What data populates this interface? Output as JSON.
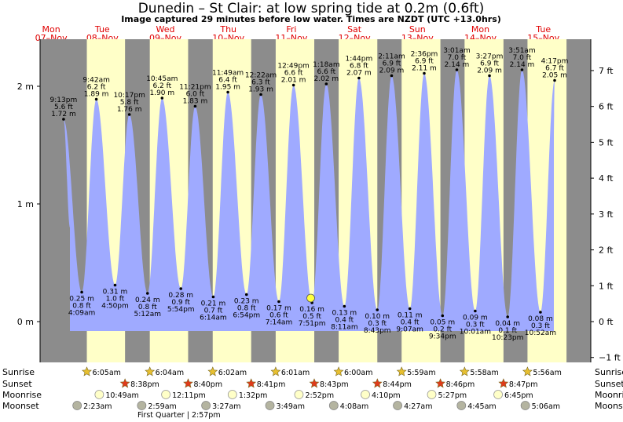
{
  "title": "Dunedin – St Clair: at low  spring tide at 0.2m (0.6ft)",
  "subtitle": "Image captured 29 minutes before low water. Times are NZDT (UTC +13.0hrs)",
  "colors": {
    "night": "#8c8c8c",
    "day": "#ffffc8",
    "water": "#9faaff",
    "day_label": "#e00000",
    "sun_marker": "#e8c030",
    "sunset_marker": "#e03a1a",
    "moonrise_marker": "#ffffc8",
    "moonset_marker": "#b4b4a0",
    "current_marker": "#ffff40"
  },
  "days": [
    {
      "dow": "Mon",
      "date": "07–Nov"
    },
    {
      "dow": "Tue",
      "date": "08–Nov"
    },
    {
      "dow": "Wed",
      "date": "09–Nov"
    },
    {
      "dow": "Thu",
      "date": "10–Nov"
    },
    {
      "dow": "Fri",
      "date": "11–Nov"
    },
    {
      "dow": "Sat",
      "date": "12–Nov"
    },
    {
      "dow": "Sun",
      "date": "13–Nov"
    },
    {
      "dow": "Mon",
      "date": "14–Nov"
    },
    {
      "dow": "Tue",
      "date": "15–Nov"
    }
  ],
  "chart_data": {
    "type": "area",
    "x_start": "Mon 07-Nov 12:00",
    "x_end": "Tue 15-Nov 24:00",
    "y_left_unit": "m",
    "y_left_ticks": [
      {
        "v": 0,
        "label": "0 m"
      },
      {
        "v": 1,
        "label": "1 m"
      },
      {
        "v": 2,
        "label": "2 m"
      }
    ],
    "y_right_ticks": [
      {
        "v": -1,
        "label": "−1 ft"
      },
      {
        "v": 0,
        "label": "0 ft"
      },
      {
        "v": 1,
        "label": "1 ft"
      },
      {
        "v": 2,
        "label": "2 ft"
      },
      {
        "v": 3,
        "label": "3 ft"
      },
      {
        "v": 4,
        "label": "4 ft"
      },
      {
        "v": 5,
        "label": "5 ft"
      },
      {
        "v": 6,
        "label": "6 ft"
      },
      {
        "v": 7,
        "label": "7 ft"
      }
    ],
    "ylim_m": [
      -0.35,
      2.35
    ],
    "tides": [
      {
        "type": "high",
        "day": 0,
        "time": "9:13 pm",
        "ft": "5.6 ft",
        "m": 1.72,
        "m_label": "1.72 m"
      },
      {
        "type": "low",
        "day": 1,
        "time": "4:09 am",
        "ft": "0.8 ft",
        "m": 0.25,
        "m_label": "0.25 m"
      },
      {
        "type": "high",
        "day": 1,
        "time": "9:42 am",
        "ft": "6.2 ft",
        "m": 1.89,
        "m_label": "1.89 m"
      },
      {
        "type": "low",
        "day": 1,
        "time": "4:50 pm",
        "ft": "1.0 ft",
        "m": 0.31,
        "m_label": "0.31 m"
      },
      {
        "type": "high",
        "day": 1,
        "time": "10:17 pm",
        "ft": "5.8 ft",
        "m": 1.76,
        "m_label": "1.76 m"
      },
      {
        "type": "low",
        "day": 2,
        "time": "5:12 am",
        "ft": "0.8 ft",
        "m": 0.24,
        "m_label": "0.24 m"
      },
      {
        "type": "high",
        "day": 2,
        "time": "10:45 am",
        "ft": "6.2 ft",
        "m": 1.9,
        "m_label": "1.90 m"
      },
      {
        "type": "low",
        "day": 2,
        "time": "5:54 pm",
        "ft": "0.9 ft",
        "m": 0.28,
        "m_label": "0.28 m"
      },
      {
        "type": "high",
        "day": 2,
        "time": "11:21 pm",
        "ft": "6.0 ft",
        "m": 1.83,
        "m_label": "1.83 m"
      },
      {
        "type": "low",
        "day": 3,
        "time": "6:14 am",
        "ft": "0.7 ft",
        "m": 0.21,
        "m_label": "0.21 m"
      },
      {
        "type": "high",
        "day": 3,
        "time": "11:49 am",
        "ft": "6.4 ft",
        "m": 1.95,
        "m_label": "1.95 m"
      },
      {
        "type": "low",
        "day": 3,
        "time": "6:54 pm",
        "ft": "0.8 ft",
        "m": 0.23,
        "m_label": "0.23 m"
      },
      {
        "type": "high",
        "day": 4,
        "time": "12:22 am",
        "ft": "6.3 ft",
        "m": 1.93,
        "m_label": "1.93 m"
      },
      {
        "type": "low",
        "day": 4,
        "time": "7:14 am",
        "ft": "0.6 ft",
        "m": 0.17,
        "m_label": "0.17 m"
      },
      {
        "type": "high",
        "day": 4,
        "time": "12:49 pm",
        "ft": "6.6 ft",
        "m": 2.01,
        "m_label": "2.01 m"
      },
      {
        "type": "low",
        "day": 4,
        "time": "7:51 pm",
        "ft": "0.5 ft",
        "m": 0.16,
        "m_label": "0.16 m"
      },
      {
        "type": "high",
        "day": 5,
        "time": "1:18 am",
        "ft": "6.6 ft",
        "m": 2.02,
        "m_label": "2.02 m"
      },
      {
        "type": "low",
        "day": 5,
        "time": "8:11 am",
        "ft": "0.4 ft",
        "m": 0.13,
        "m_label": "0.13 m"
      },
      {
        "type": "high",
        "day": 5,
        "time": "1:44 pm",
        "ft": "6.8 ft",
        "m": 2.07,
        "m_label": "2.07 m"
      },
      {
        "type": "low",
        "day": 5,
        "time": "8:43 pm",
        "ft": "0.3 ft",
        "m": 0.1,
        "m_label": "0.10 m"
      },
      {
        "type": "high",
        "day": 6,
        "time": "2:11 am",
        "ft": "6.9 ft",
        "m": 2.09,
        "m_label": "2.09 m"
      },
      {
        "type": "low",
        "day": 6,
        "time": "9:07 am",
        "ft": "0.4 ft",
        "m": 0.11,
        "m_label": "0.11 m"
      },
      {
        "type": "high",
        "day": 6,
        "time": "2:36 pm",
        "ft": "6.9 ft",
        "m": 2.11,
        "m_label": "2.11 m"
      },
      {
        "type": "low",
        "day": 6,
        "time": "9:34 pm",
        "ft": "0.2 ft",
        "m": 0.05,
        "m_label": "0.05 m"
      },
      {
        "type": "high",
        "day": 7,
        "time": "3:01 am",
        "ft": "7.0 ft",
        "m": 2.14,
        "m_label": "2.14 m"
      },
      {
        "type": "low",
        "day": 7,
        "time": "10:01 am",
        "ft": "0.3 ft",
        "m": 0.09,
        "m_label": "0.09 m"
      },
      {
        "type": "high",
        "day": 7,
        "time": "3:27 pm",
        "ft": "6.9 ft",
        "m": 2.09,
        "m_label": "2.09 m"
      },
      {
        "type": "low",
        "day": 7,
        "time": "10:23 pm",
        "ft": "0.1 ft",
        "m": 0.04,
        "m_label": "0.04 m"
      },
      {
        "type": "high",
        "day": 8,
        "time": "3:51 am",
        "ft": "7.0 ft",
        "m": 2.14,
        "m_label": "2.14 m"
      },
      {
        "type": "low",
        "day": 8,
        "time": "10:52 am",
        "ft": "0.3 ft",
        "m": 0.08,
        "m_label": "0.08 m"
      },
      {
        "type": "high",
        "day": 8,
        "time": "4:17 pm",
        "ft": "6.7 ft",
        "m": 2.05,
        "m_label": "2.05 m"
      }
    ],
    "current": {
      "day": 4,
      "time": "7:22 pm",
      "m": 0.2
    }
  },
  "rows": {
    "sunrise_label": "Sunrise",
    "sunset_label": "Sunset",
    "moonrise_label": "Moonrise",
    "moonset_label": "Moonset",
    "sunrise": [
      {
        "day": 1,
        "time": "6:05am"
      },
      {
        "day": 2,
        "time": "6:04am"
      },
      {
        "day": 3,
        "time": "6:02am"
      },
      {
        "day": 4,
        "time": "6:01am"
      },
      {
        "day": 5,
        "time": "6:00am"
      },
      {
        "day": 6,
        "time": "5:59am"
      },
      {
        "day": 7,
        "time": "5:58am"
      },
      {
        "day": 8,
        "time": "5:56am"
      }
    ],
    "sunset": [
      {
        "day": 1,
        "time": "8:38pm"
      },
      {
        "day": 2,
        "time": "8:40pm"
      },
      {
        "day": 3,
        "time": "8:41pm"
      },
      {
        "day": 4,
        "time": "8:43pm"
      },
      {
        "day": 5,
        "time": "8:44pm"
      },
      {
        "day": 6,
        "time": "8:46pm"
      },
      {
        "day": 7,
        "time": "8:47pm"
      }
    ],
    "moonrise": [
      {
        "day": 1,
        "time": "10:49am"
      },
      {
        "day": 2,
        "time": "12:11pm"
      },
      {
        "day": 3,
        "time": "1:32pm"
      },
      {
        "day": 4,
        "time": "2:52pm"
      },
      {
        "day": 5,
        "time": "4:10pm"
      },
      {
        "day": 6,
        "time": "5:27pm"
      },
      {
        "day": 7,
        "time": "6:45pm"
      }
    ],
    "moonset": [
      {
        "day": 1,
        "time": "2:23am"
      },
      {
        "day": 2,
        "time": "2:59am"
      },
      {
        "day": 3,
        "time": "3:27am"
      },
      {
        "day": 4,
        "time": "3:49am"
      },
      {
        "day": 5,
        "time": "4:08am"
      },
      {
        "day": 6,
        "time": "4:27am"
      },
      {
        "day": 7,
        "time": "4:45am"
      },
      {
        "day": 8,
        "time": "5:06am"
      }
    ],
    "moon_phase": "First Quarter | 2:57pm"
  }
}
